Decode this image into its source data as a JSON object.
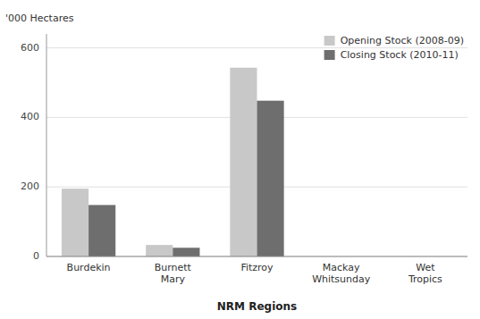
{
  "chart_data": {
    "type": "bar",
    "categories": [
      "Burdekin",
      "Burnett\nMary",
      "Fitzroy",
      "Mackay\nWhitsunday",
      "Wet\nTropics"
    ],
    "series": [
      {
        "name": "Opening Stock (2008-09)",
        "color": "#c8c8c8",
        "values": [
          195,
          33,
          543,
          0,
          0
        ]
      },
      {
        "name": "Closing Stock (2010-11)",
        "color": "#6e6e6e",
        "values": [
          148,
          25,
          448,
          0,
          0
        ]
      }
    ],
    "xlabel": "NRM Regions",
    "ylabel": "'000 Hectares",
    "ylim": [
      0,
      640
    ],
    "yticks": [
      0,
      200,
      400,
      600
    ],
    "grid": true,
    "legend": "upper right"
  }
}
